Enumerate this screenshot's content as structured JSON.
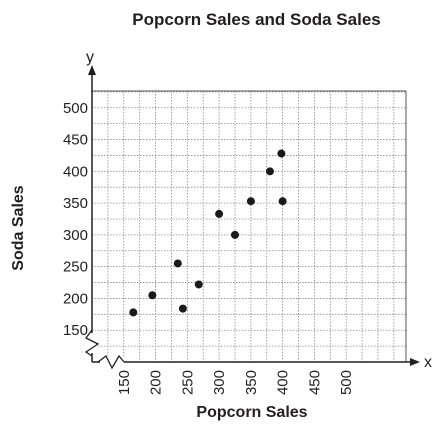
{
  "chart_data": {
    "type": "scatter",
    "title": "Popcorn Sales and Soda Sales",
    "xlabel": "Popcorn Sales",
    "ylabel": "Soda Sales",
    "x_axis_letter": "x",
    "y_axis_letter": "y",
    "x_ticks": [
      "150",
      "200",
      "250",
      "300",
      "350",
      "400",
      "450",
      "500"
    ],
    "y_ticks": [
      "150",
      "200",
      "250",
      "300",
      "350",
      "400",
      "450",
      "500"
    ],
    "xlim": [
      100,
      550
    ],
    "ylim": [
      100,
      550
    ],
    "axis_break": true,
    "grid": true,
    "points": [
      {
        "x": 165,
        "y": 178
      },
      {
        "x": 195,
        "y": 205
      },
      {
        "x": 235,
        "y": 255
      },
      {
        "x": 243,
        "y": 184
      },
      {
        "x": 268,
        "y": 222
      },
      {
        "x": 300,
        "y": 333
      },
      {
        "x": 325,
        "y": 300
      },
      {
        "x": 350,
        "y": 353
      },
      {
        "x": 380,
        "y": 400
      },
      {
        "x": 398,
        "y": 428
      },
      {
        "x": 400,
        "y": 353
      }
    ]
  }
}
